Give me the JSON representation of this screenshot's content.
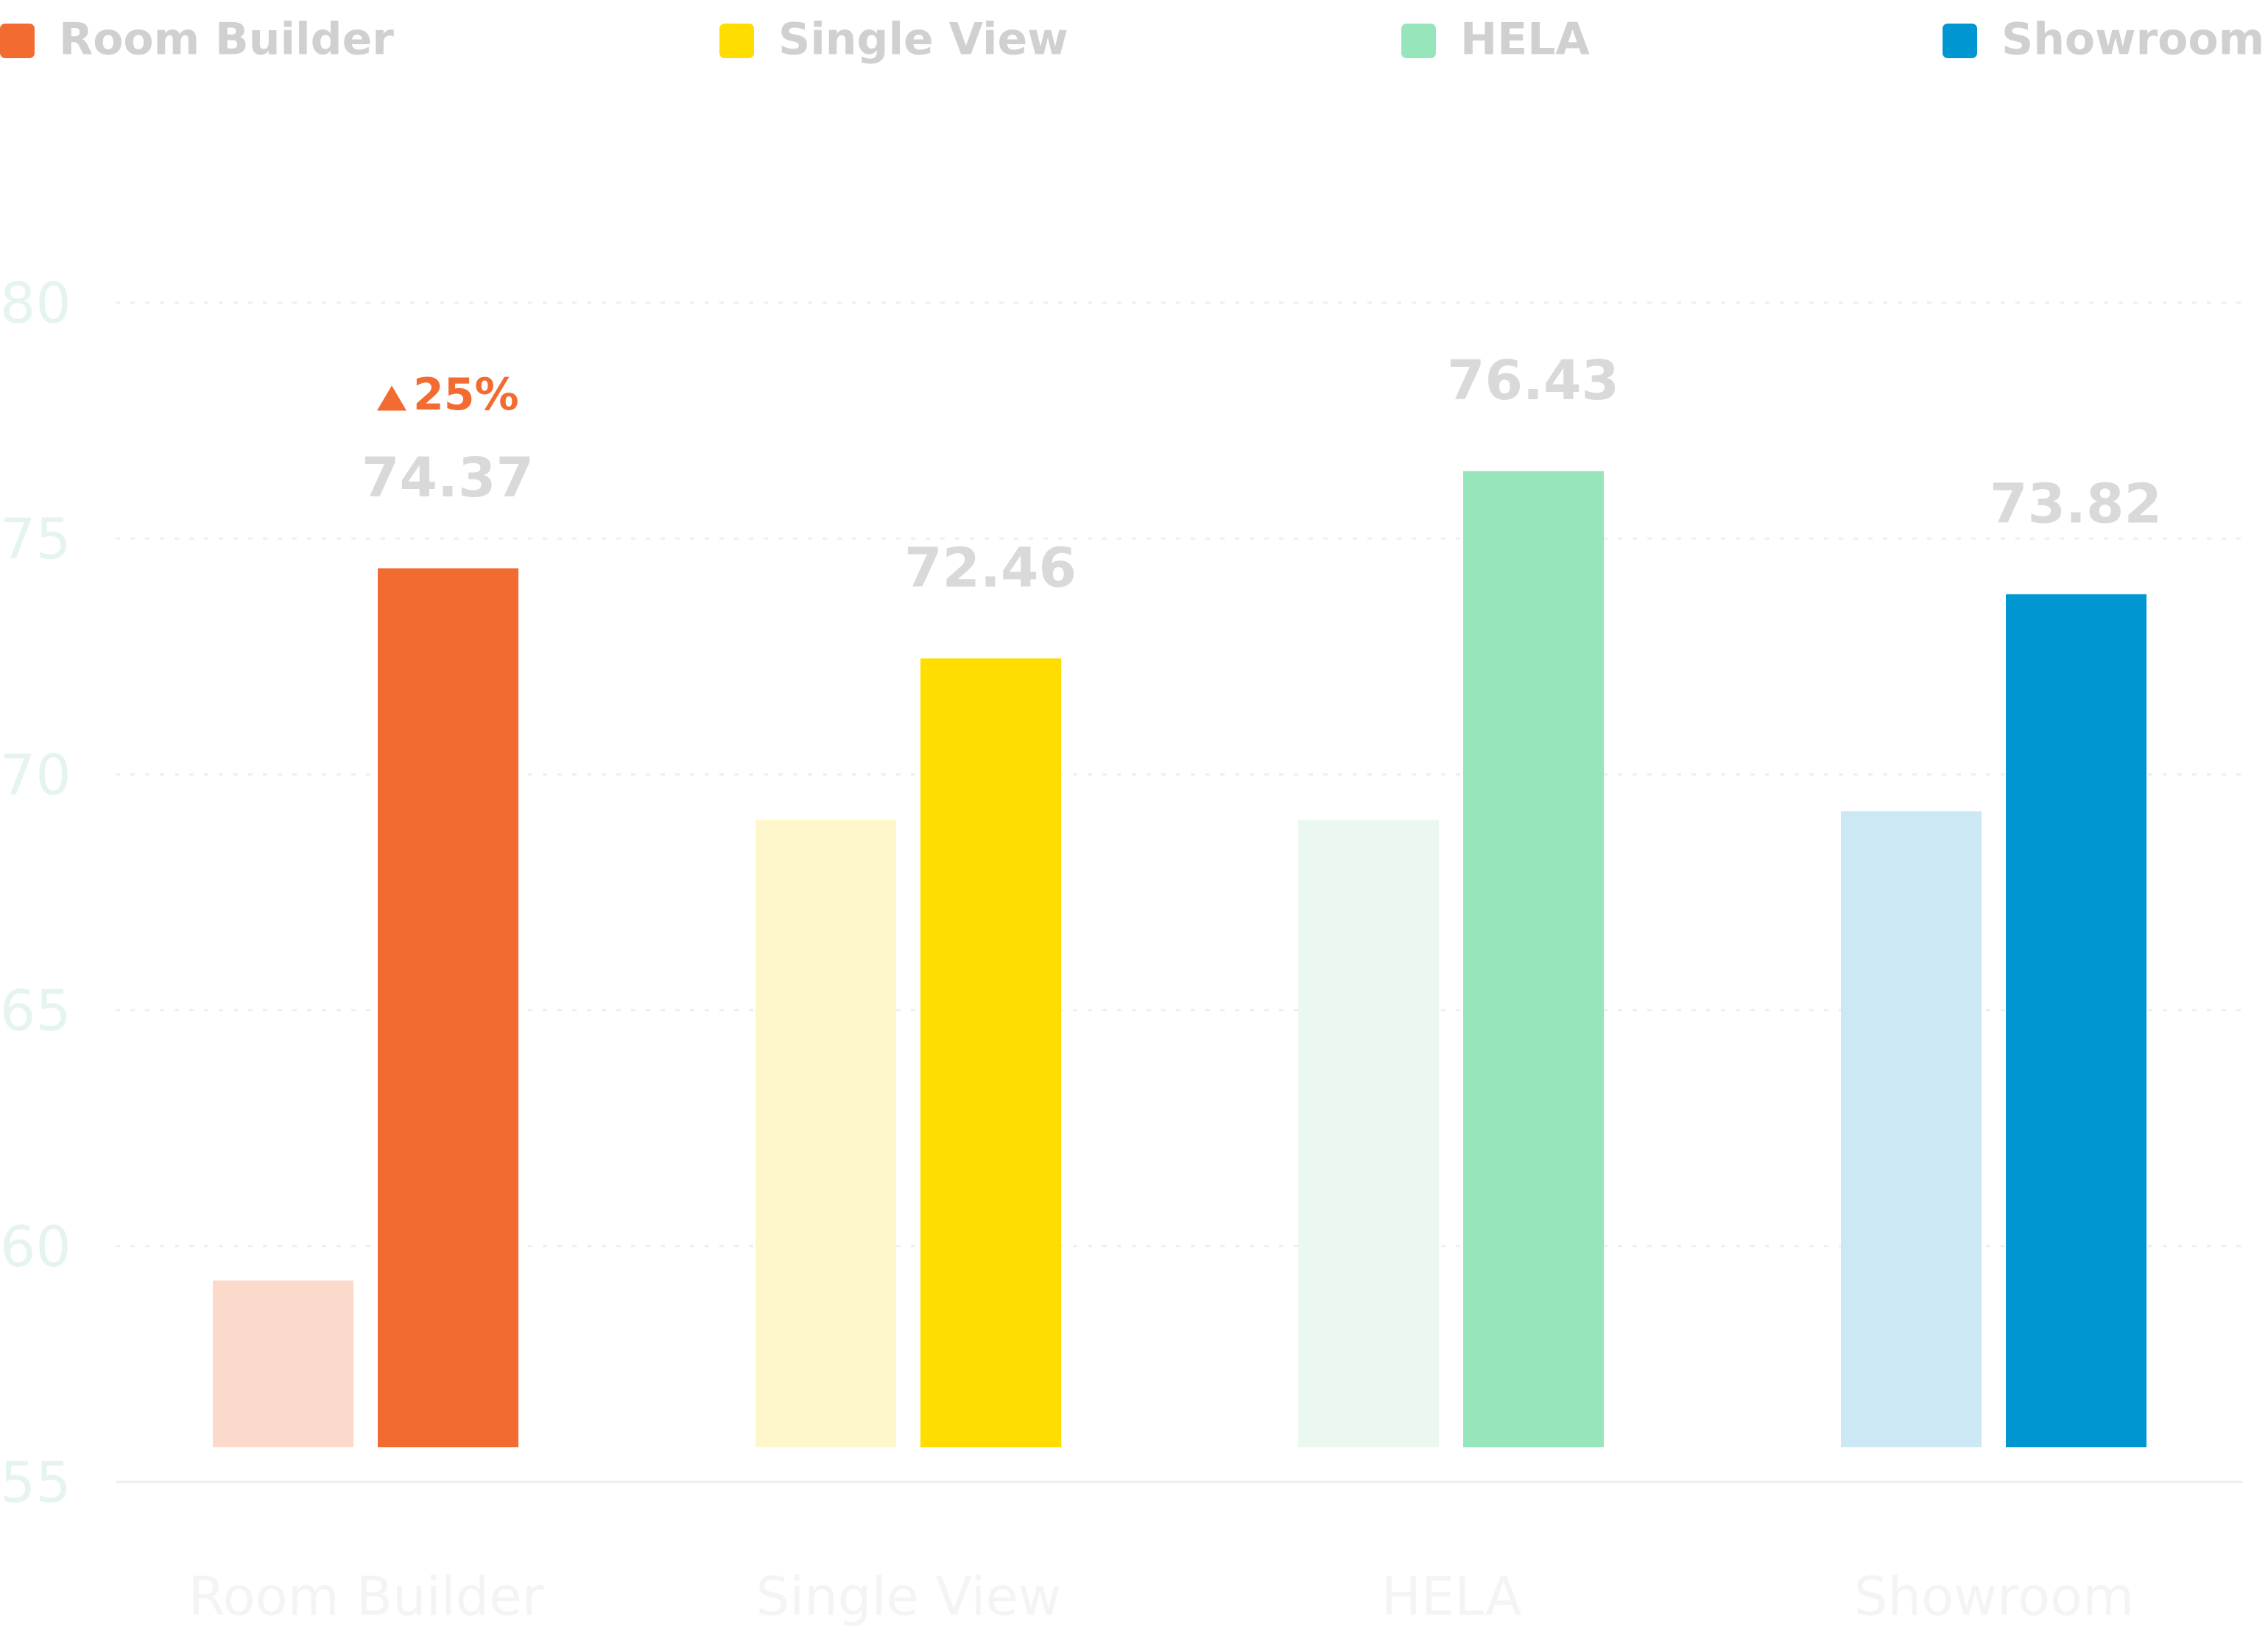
{
  "chart_data": {
    "type": "bar",
    "categories": [
      "Room Builder",
      "Single View",
      "HELA",
      "Showroom"
    ],
    "series": [
      {
        "values": [
          59.27,
          69.04,
          69.04,
          69.22
        ],
        "colors": [
          "#fbd9cb",
          "#fff7cc",
          "#eaf8f0",
          "#cce8f4"
        ]
      },
      {
        "values": [
          74.37,
          72.46,
          76.43,
          73.82
        ],
        "colors": [
          "#f26b30",
          "#ffdd00",
          "#97e5bb",
          "#0096d2"
        ]
      }
    ],
    "annotations": [
      {
        "text": "25%",
        "category": "Room Builder",
        "color": "#f26b30"
      }
    ],
    "ylim": [
      55,
      80
    ],
    "yticks": [
      55,
      60,
      65,
      70,
      75,
      80
    ],
    "grid": true
  }
}
